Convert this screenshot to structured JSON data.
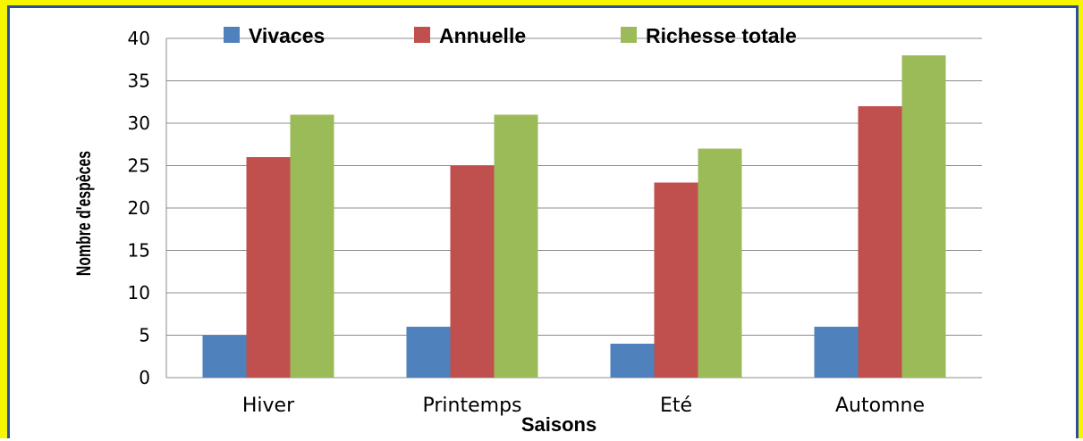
{
  "chart_data": {
    "type": "bar",
    "categories": [
      "Hiver",
      "Printemps",
      "Eté",
      "Automne"
    ],
    "series": [
      {
        "name": "Vivaces",
        "values": [
          5,
          6,
          4,
          6
        ],
        "color": "#4f81bd"
      },
      {
        "name": "Annuelle",
        "values": [
          26,
          25,
          23,
          32
        ],
        "color": "#c0504d"
      },
      {
        "name": "Richesse totale",
        "values": [
          31,
          31,
          27,
          38
        ],
        "color": "#9bbb59"
      }
    ],
    "xlabel": "Saisons",
    "ylabel": "Nombre d'espèces",
    "ylim": [
      0,
      40
    ],
    "yticks": [
      0,
      5,
      10,
      15,
      20,
      25,
      30,
      35,
      40
    ],
    "grid": true,
    "legend_position": "top"
  },
  "colors": {
    "frame": "#f5f600",
    "border": "#2c4f9a",
    "gridline": "#8c8c8c"
  }
}
